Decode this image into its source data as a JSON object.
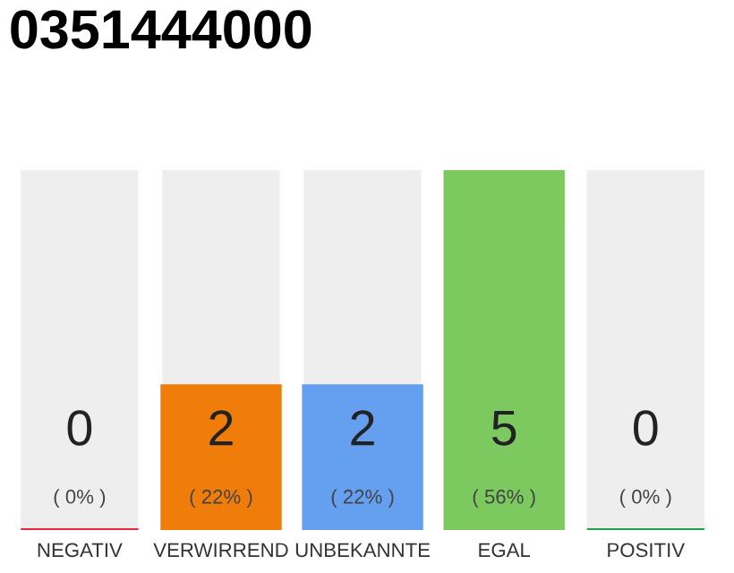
{
  "chart_data": {
    "type": "bar",
    "title": "0351444000",
    "categories": [
      "NEGATIV",
      "VERWIRREND",
      "UNBEKANNTE",
      "EGAL",
      "POSITIV"
    ],
    "values": [
      0,
      2,
      2,
      5,
      0
    ],
    "colors": [
      "#e8273f",
      "#f07d0a",
      "#659ff0",
      "#7bc95f",
      "#22a04b"
    ],
    "grid": false,
    "legend": false,
    "value_labels": [
      "0",
      "2",
      "2",
      "5",
      "0"
    ],
    "annotations": [
      "( 0% )",
      "( 22% )",
      "( 22% )",
      "( 56% )",
      "( 0% )"
    ]
  }
}
